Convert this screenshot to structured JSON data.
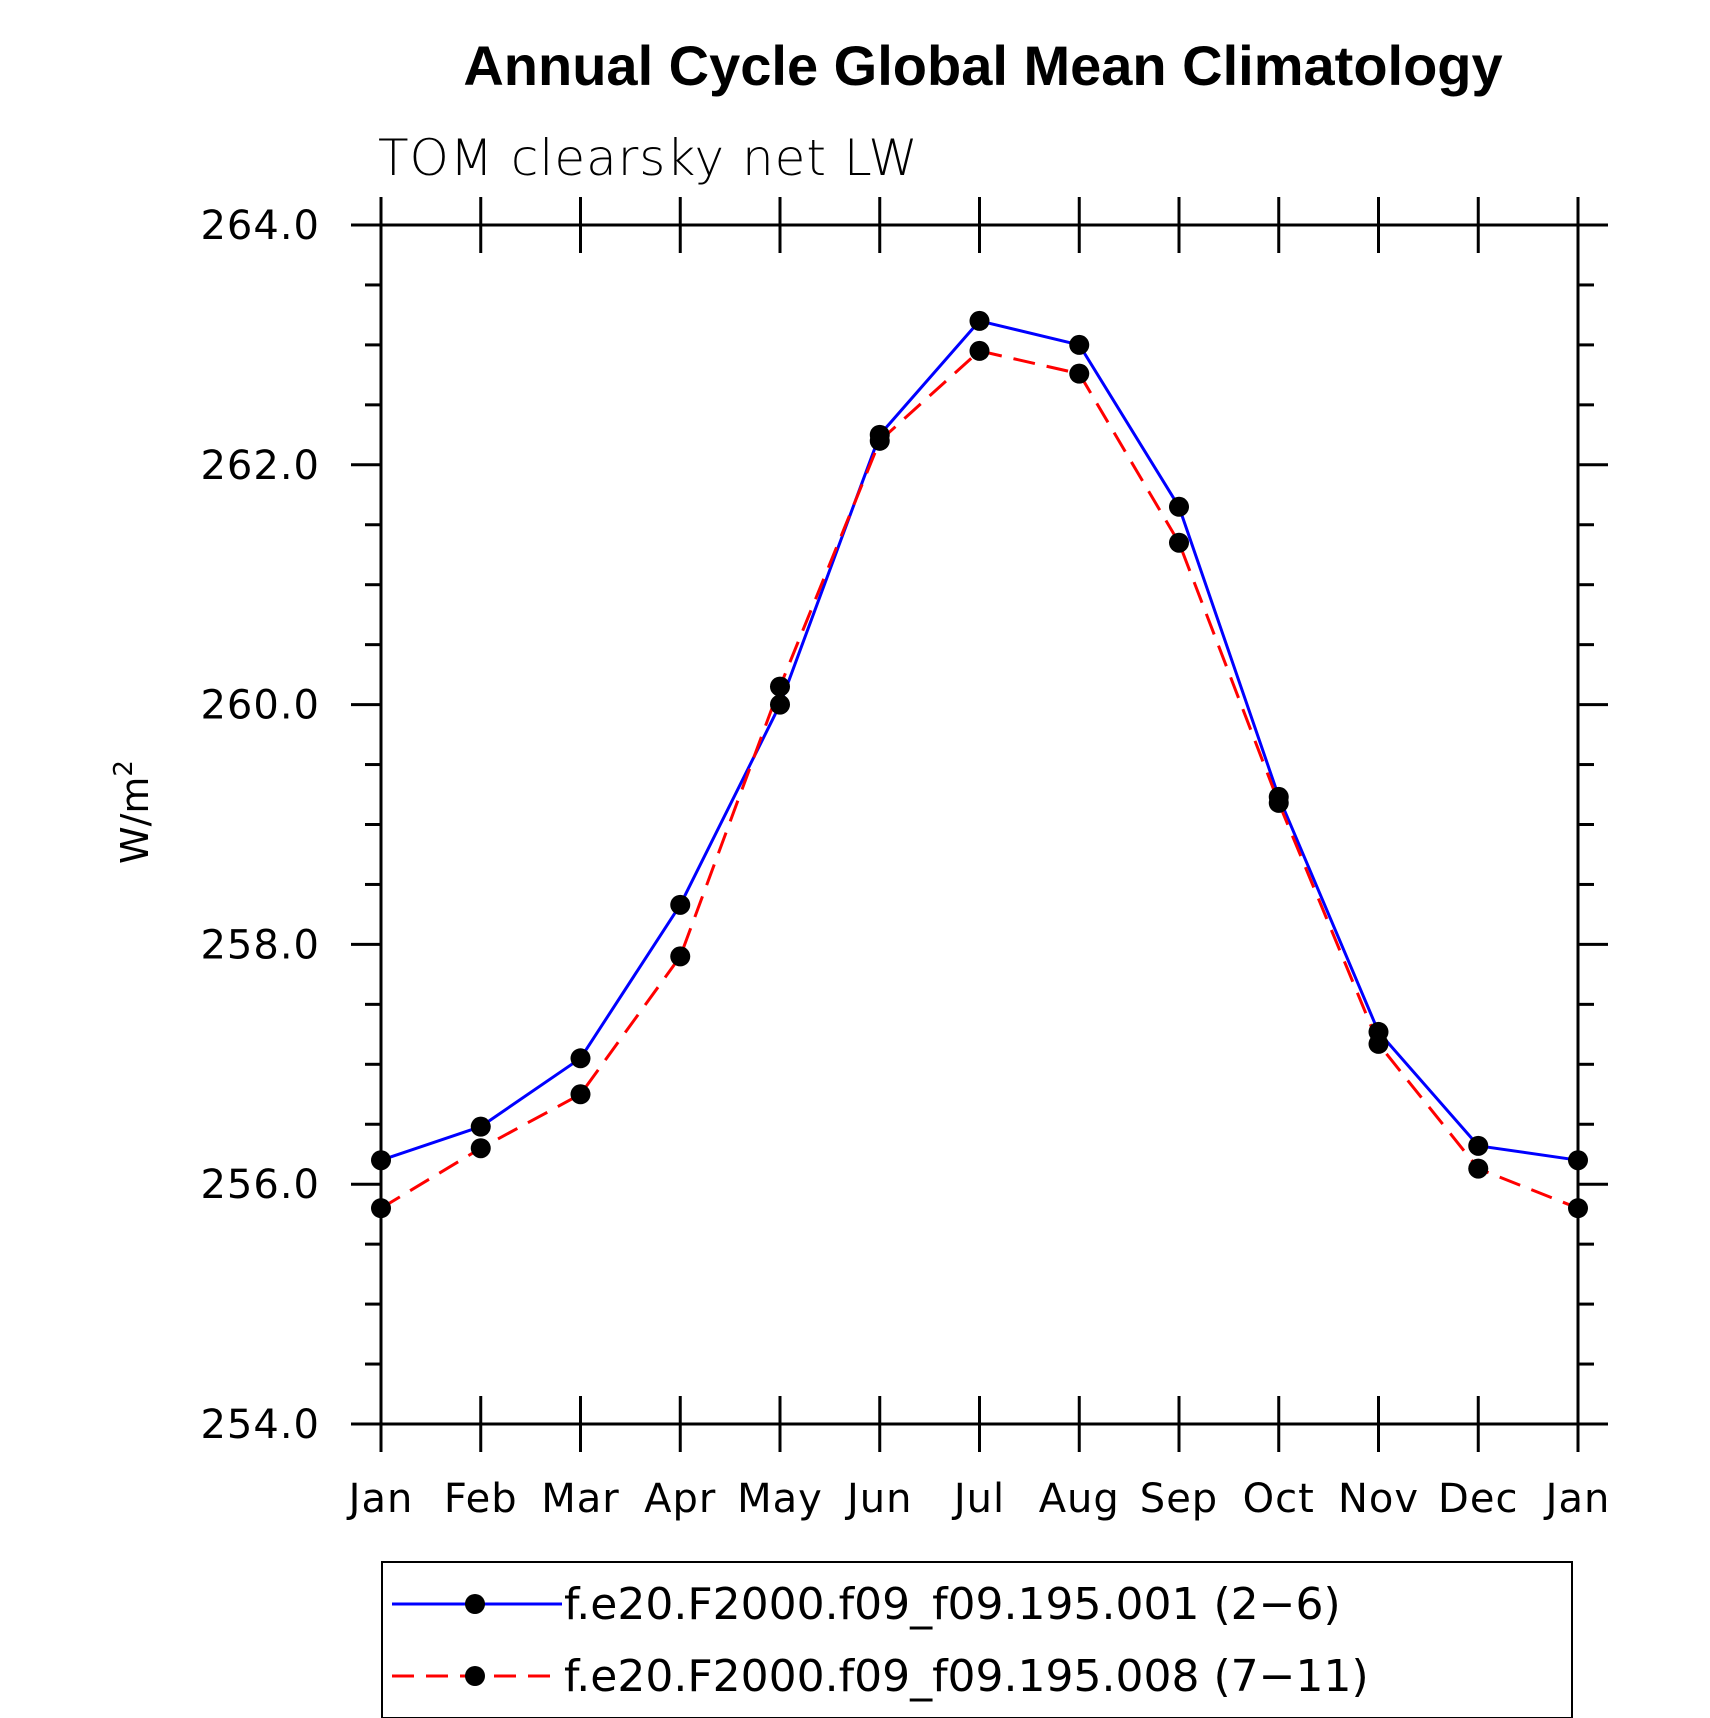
{
  "chart_data": {
    "type": "line",
    "title": "Annual Cycle Global Mean Climatology",
    "subtitle": "TOM clearsky net LW",
    "xlabel": "",
    "ylabel": "W/m",
    "ylabel_superscript": "2",
    "categories": [
      "Jan",
      "Feb",
      "Mar",
      "Apr",
      "May",
      "Jun",
      "Jul",
      "Aug",
      "Sep",
      "Oct",
      "Nov",
      "Dec",
      "Jan"
    ],
    "ylim": [
      254.0,
      264.0
    ],
    "yticks": [
      "254.0",
      "256.0",
      "258.0",
      "260.0",
      "262.0",
      "264.0"
    ],
    "series": [
      {
        "name": "f.e20.F2000.f09_f09.195.001 (2−6)",
        "color": "#0000ff",
        "style": "solid",
        "values": [
          256.2,
          256.48,
          257.05,
          258.33,
          260.0,
          262.25,
          263.2,
          263.0,
          261.65,
          259.23,
          257.27,
          256.32,
          256.2
        ]
      },
      {
        "name": "f.e20.F2000.f09_f09.195.008 (7−11)",
        "color": "#ff0000",
        "style": "dashed",
        "values": [
          255.8,
          256.3,
          256.75,
          257.9,
          260.15,
          262.2,
          262.95,
          262.76,
          261.35,
          259.18,
          257.17,
          256.13,
          255.8
        ]
      }
    ],
    "marker_color": "#000000",
    "legend_position": "bottom"
  }
}
